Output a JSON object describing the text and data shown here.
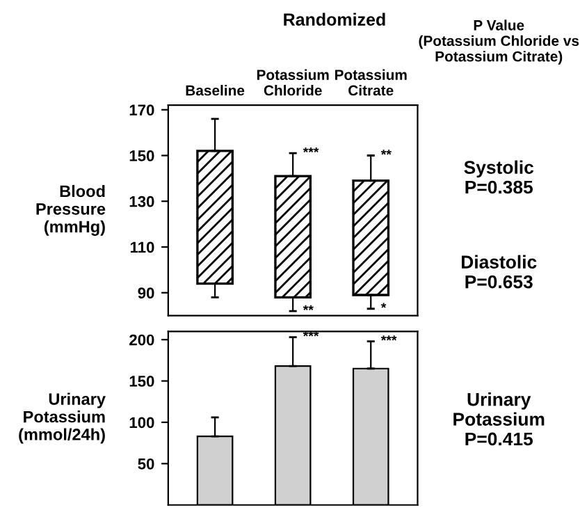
{
  "chart_data": [
    {
      "type": "bar",
      "ylabel": "Blood\nPressure\n(mmHg)",
      "categories": [
        "Baseline",
        "Potassium\nChloride",
        "Potassium\nCitrate"
      ],
      "values": [
        58,
        53,
        50
      ],
      "base": [
        94,
        88,
        89
      ],
      "color": "#000000",
      "errors": [
        [
          88,
          166
        ],
        [
          82,
          151
        ],
        [
          83,
          150
        ]
      ],
      "ylim": [
        80,
        172
      ],
      "yticks": [
        90,
        110,
        130,
        150,
        170
      ],
      "annotations": [
        "Randomized",
        "P Value\n(Potassium Chloride vs\nPotassium Citrate)",
        "Systolic\nP=0.385",
        "Diastolic\nP=0.653",
        {
          "text": "***",
          "x": "Potassium\nChloride",
          "y": 151
        },
        {
          "text": "**",
          "x": "Potassium\nCitrate",
          "y": 150
        },
        {
          "text": "**",
          "x": "Potassium\nChloride",
          "y": 82
        },
        {
          "text": "*",
          "x": "Potassium\nCitrate",
          "y": 83
        }
      ]
    },
    {
      "type": "bar",
      "ylabel": "Urinary\nPotassium\n(mmol/24h)",
      "categories": [
        "Baseline",
        "Potassium\nChloride",
        "Potassium\nCitrate"
      ],
      "values": [
        83,
        168,
        165
      ],
      "color": "#d0d0d0",
      "errors": [
        [
          83,
          106
        ],
        [
          168,
          203
        ],
        [
          165,
          198
        ]
      ],
      "ylim": [
        0,
        210
      ],
      "yticks": [
        50,
        100,
        150,
        200
      ],
      "tick_labels": "y",
      "annotations": [
        "Urinary\nPotassium\nP=0.415",
        {
          "text": "***",
          "x": "Potassium\nChloride",
          "y": 203
        },
        {
          "text": "***",
          "x": "Potassium\nCitrate",
          "y": 198
        }
      ]
    }
  ]
}
